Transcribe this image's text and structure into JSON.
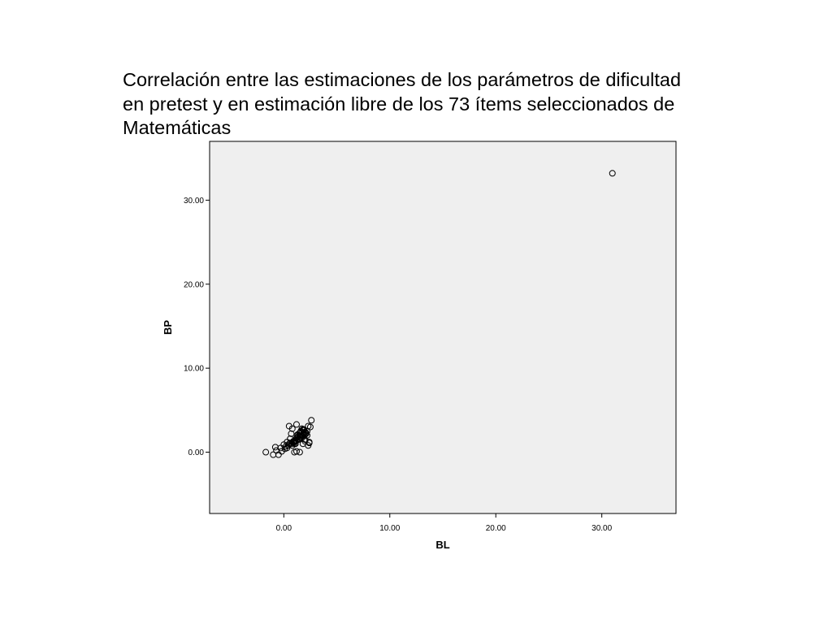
{
  "chart_data": {
    "type": "scatter",
    "title_lines": [
      "Correlación entre las estimaciones de los parámetros de dificultad",
      "en pretest y en estimación libre de los 73 ítems seleccionados de",
      "Matemáticas"
    ],
    "xlabel": "BL",
    "ylabel": "BP",
    "xlim": [
      -7.0,
      37.0
    ],
    "ylim": [
      -7.3,
      37.0
    ],
    "x_ticks": [
      "0.00",
      "10.00",
      "20.00",
      "30.00"
    ],
    "y_ticks": [
      "0.00",
      "10.00",
      "20.00",
      "30.00"
    ],
    "x_tick_values": [
      0,
      10,
      20,
      30
    ],
    "y_tick_values": [
      0,
      10,
      20,
      30
    ],
    "grid": false,
    "plot_background": "#efefef",
    "marker_color": "#000000",
    "series": [
      {
        "x": [
          31.0,
          -1.7,
          -1.0,
          -0.7,
          -0.3,
          0.0,
          0.3,
          0.5,
          0.8,
          1.0,
          1.2,
          1.5,
          1.8,
          2.0,
          2.3,
          2.6,
          -0.5,
          0.2,
          0.6,
          0.9,
          1.1,
          1.3,
          1.6,
          1.9,
          2.1,
          2.4,
          0.4,
          0.7,
          1.4,
          1.7,
          2.2,
          -0.8,
          0.1,
          1.0,
          1.2,
          1.5,
          1.8,
          2.0,
          0.5,
          1.3,
          1.6,
          1.9,
          2.3,
          0.9,
          1.1,
          1.4,
          1.7,
          0.3,
          0.8,
          2.1,
          2.5,
          -0.2,
          0.6,
          1.0,
          1.5,
          2.0,
          1.2,
          1.8,
          0.7,
          1.3,
          1.6,
          2.2,
          2.4,
          1.1,
          1.9,
          1.4,
          0.9,
          1.7,
          2.0,
          1.5,
          1.2,
          1.0,
          1.6
        ],
        "y": [
          33.2,
          0.0,
          -0.3,
          0.2,
          0.5,
          0.9,
          1.2,
          3.1,
          2.8,
          1.0,
          3.3,
          2.3,
          2.0,
          1.3,
          3.1,
          3.8,
          -0.3,
          0.7,
          1.6,
          1.3,
          1.0,
          1.8,
          2.4,
          2.7,
          2.2,
          1.1,
          0.8,
          2.2,
          1.5,
          1.7,
          2.0,
          0.6,
          0.4,
          0.0,
          0.1,
          0.0,
          1.0,
          1.5,
          1.0,
          2.0,
          2.5,
          2.2,
          0.8,
          1.2,
          1.4,
          1.6,
          2.8,
          0.5,
          0.8,
          2.3,
          3.0,
          0.1,
          1.1,
          1.3,
          1.8,
          2.4,
          1.7,
          2.7,
          1.0,
          2.1,
          2.0,
          2.5,
          1.2,
          1.3,
          2.6,
          1.9,
          1.1,
          2.3,
          2.1,
          2.0,
          1.4,
          1.2,
          1.8
        ]
      }
    ]
  }
}
